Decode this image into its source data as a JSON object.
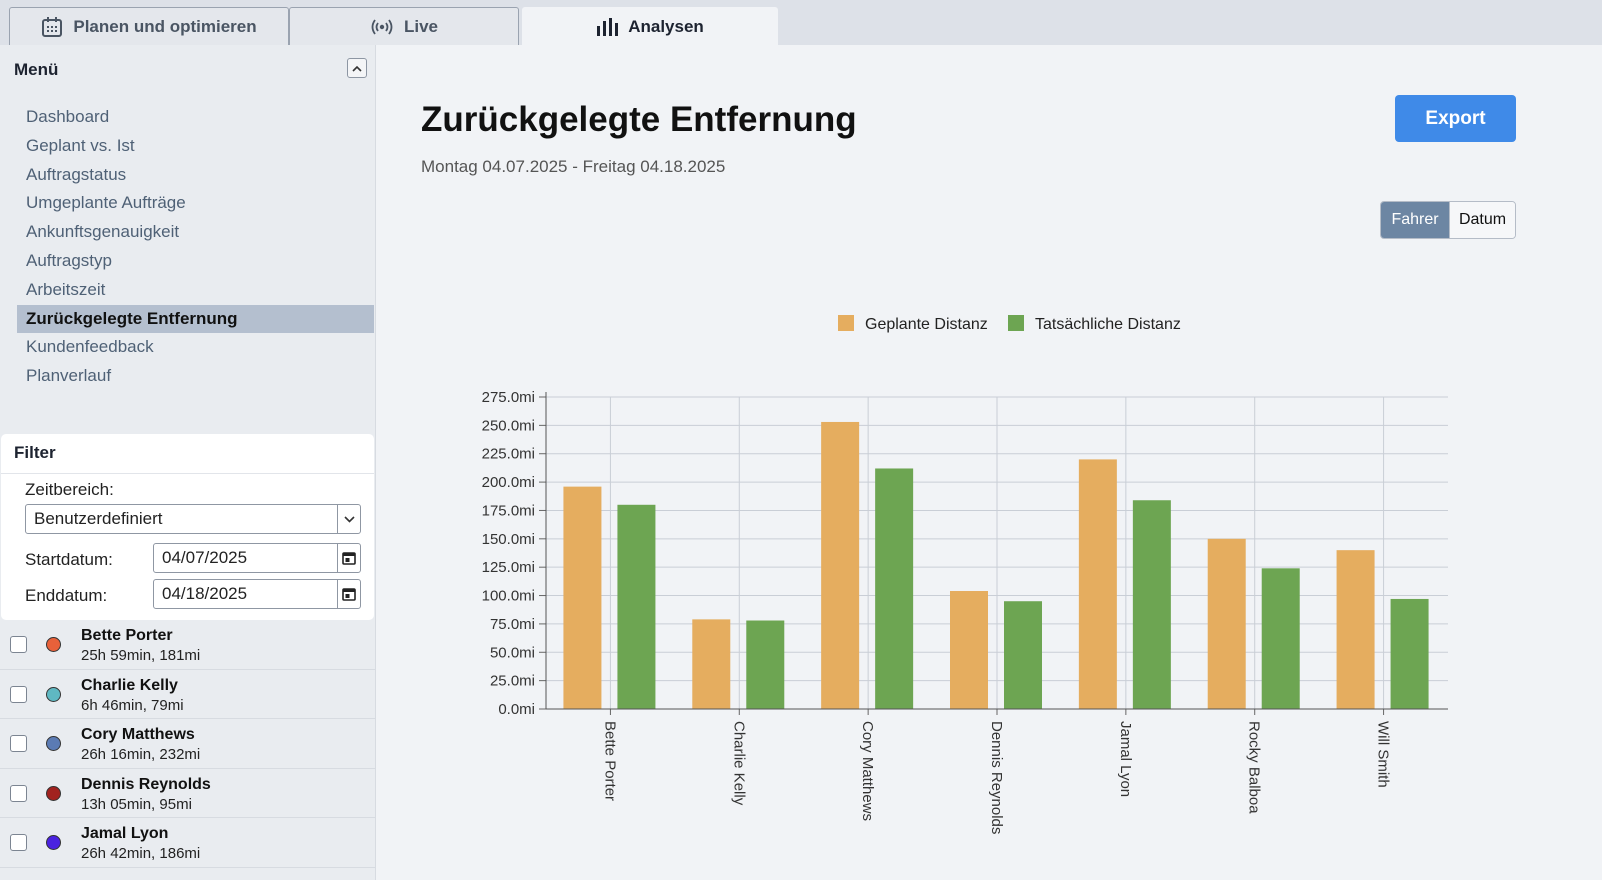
{
  "tabs": [
    {
      "label": "Planen und optimieren",
      "icon": "calendar-icon",
      "active": false
    },
    {
      "label": "Live",
      "icon": "broadcast-icon",
      "active": false
    },
    {
      "label": "Analysen",
      "icon": "bar-chart-icon",
      "active": true
    }
  ],
  "sidebar": {
    "title": "Menü",
    "items": [
      {
        "label": "Dashboard",
        "active": false
      },
      {
        "label": "Geplant vs. Ist",
        "active": false
      },
      {
        "label": "Auftragstatus",
        "active": false
      },
      {
        "label": "Umgeplante Aufträge",
        "active": false
      },
      {
        "label": "Ankunftsgenauigkeit",
        "active": false
      },
      {
        "label": "Auftragstyp",
        "active": false
      },
      {
        "label": "Arbeitszeit",
        "active": false
      },
      {
        "label": "Zurückgelegte Entfernung",
        "active": true
      },
      {
        "label": "Kundenfeedback",
        "active": false
      },
      {
        "label": "Planverlauf",
        "active": false
      }
    ]
  },
  "filter": {
    "title": "Filter",
    "range_label": "Zeitbereich:",
    "range_value": "Benutzerdefiniert",
    "start_label": "Startdatum:",
    "start_value": "04/07/2025",
    "end_label": "Enddatum:",
    "end_value": "04/18/2025"
  },
  "drivers": [
    {
      "name": "Bette Porter",
      "meta": "25h 59min, 181mi",
      "color": "#e8613a"
    },
    {
      "name": "Charlie Kelly",
      "meta": "6h 46min, 79mi",
      "color": "#5fb8c2"
    },
    {
      "name": "Cory Matthews",
      "meta": "26h 16min, 232mi",
      "color": "#5b7bb4"
    },
    {
      "name": "Dennis Reynolds",
      "meta": "13h 05min, 95mi",
      "color": "#a1221f"
    },
    {
      "name": "Jamal Lyon",
      "meta": "26h 42min, 186mi",
      "color": "#4a22e0"
    }
  ],
  "main": {
    "title": "Zurückgelegte Entfernung",
    "subtitle": "Montag 04.07.2025 - Freitag 04.18.2025",
    "export_label": "Export",
    "toggle": {
      "on": "Fahrer",
      "off": "Datum"
    }
  },
  "chart_data": {
    "type": "bar",
    "categories": [
      "Bette Porter",
      "Charlie Kelly",
      "Cory Matthews",
      "Dennis Reynolds",
      "Jamal Lyon",
      "Rocky Balboa",
      "Will Smith"
    ],
    "series": [
      {
        "name": "Geplante Distanz",
        "color": "#e5ad5f",
        "values": [
          196,
          79,
          253,
          104,
          220,
          150,
          140
        ]
      },
      {
        "name": "Tatsächliche Distanz",
        "color": "#6da552",
        "values": [
          180,
          78,
          212,
          95,
          184,
          124,
          97
        ]
      }
    ],
    "ylim": [
      0,
      275
    ],
    "yticks": [
      "0.0mi",
      "25.0mi",
      "50.0mi",
      "75.0mi",
      "100.0mi",
      "125.0mi",
      "150.0mi",
      "175.0mi",
      "200.0mi",
      "225.0mi",
      "250.0mi",
      "275.0mi"
    ],
    "grid": true,
    "legend": "top-center"
  }
}
